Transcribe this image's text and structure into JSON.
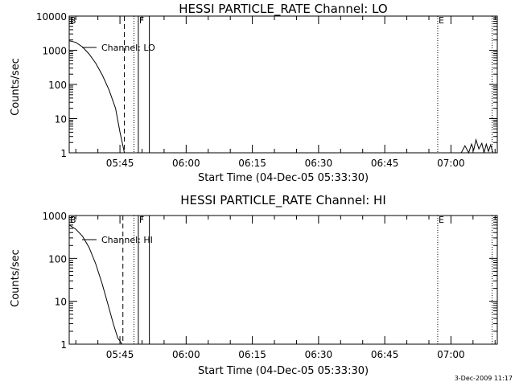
{
  "chart_data": [
    {
      "type": "line",
      "title": "HESSI PARTICLE_RATE Channel: LO",
      "ylabel": "Counts/sec",
      "xlabel": "Start Time (04-Dec-05 05:33:30)",
      "yscale": "log",
      "ylim": [
        1,
        10000
      ],
      "ytick_labels": [
        "1",
        "10",
        "100",
        "1000",
        "10000"
      ],
      "ytick_values": [
        1,
        10,
        100,
        1000,
        10000
      ],
      "xlim": [
        "05:33:30",
        "07:10:30"
      ],
      "xtick_labels": [
        "05:45",
        "06:00",
        "06:15",
        "06:30",
        "06:45",
        "07:00"
      ],
      "legend": "Channel: LO",
      "series": [
        {
          "name": "Channel: LO",
          "x": [
            "05:33:30",
            "05:35:00",
            "05:36:30",
            "05:38:00",
            "05:39:30",
            "05:41:00",
            "05:42:30",
            "05:44:00",
            "05:45:00",
            "05:46:00"
          ],
          "y": [
            1900,
            1700,
            1250,
            780,
            420,
            190,
            70,
            20,
            4,
            1
          ]
        },
        {
          "name": "Channel: LO",
          "x": [
            "07:02:20",
            "07:03:10",
            "07:04:00",
            "07:04:40",
            "07:05:10",
            "07:05:40",
            "07:06:20",
            "07:07:00",
            "07:07:30",
            "07:08:00",
            "07:08:30",
            "07:09:00",
            "07:09:30"
          ],
          "y": [
            1,
            1.6,
            1,
            1.8,
            1.2,
            2.4,
            1.3,
            1.9,
            1,
            1.8,
            1.1,
            1.7,
            1
          ]
        }
      ],
      "markers": [
        {
          "label": "B",
          "time": "05:33:30",
          "style": "solid"
        },
        {
          "label": "",
          "time": "05:46:00",
          "style": "dashed"
        },
        {
          "label": "",
          "time": "05:48:10",
          "style": "dotted"
        },
        {
          "label": "F",
          "time": "05:49:10",
          "style": "solid"
        },
        {
          "label": "",
          "time": "05:51:40",
          "style": "solid"
        },
        {
          "label": "E",
          "time": "06:57:00",
          "style": "dotted"
        },
        {
          "label": "",
          "time": "07:09:20",
          "style": "dotted"
        }
      ]
    },
    {
      "type": "line",
      "title": "HESSI PARTICLE_RATE Channel: HI",
      "ylabel": "Counts/sec",
      "xlabel": "Start Time (04-Dec-05 05:33:30)",
      "yscale": "log",
      "ylim": [
        1,
        1000
      ],
      "ytick_labels": [
        "1",
        "10",
        "100",
        "1000"
      ],
      "ytick_values": [
        1,
        10,
        100,
        1000
      ],
      "xlim": [
        "05:33:30",
        "07:10:30"
      ],
      "xtick_labels": [
        "05:45",
        "06:00",
        "06:15",
        "06:30",
        "06:45",
        "07:00"
      ],
      "legend": "Channel: HI",
      "series": [
        {
          "name": "Channel: HI",
          "x": [
            "05:33:30",
            "05:35:00",
            "05:36:30",
            "05:38:00",
            "05:39:30",
            "05:41:00",
            "05:42:30",
            "05:43:30",
            "05:44:30",
            "05:45:30"
          ],
          "y": [
            600,
            480,
            330,
            180,
            75,
            25,
            7,
            3,
            1.4,
            1
          ]
        }
      ],
      "markers": [
        {
          "label": "B",
          "time": "05:33:30",
          "style": "solid"
        },
        {
          "label": "",
          "time": "05:45:40",
          "style": "dashed"
        },
        {
          "label": "",
          "time": "05:48:10",
          "style": "dotted"
        },
        {
          "label": "F",
          "time": "05:49:10",
          "style": "solid"
        },
        {
          "label": "",
          "time": "05:51:40",
          "style": "solid"
        },
        {
          "label": "E",
          "time": "06:57:00",
          "style": "dotted"
        },
        {
          "label": "",
          "time": "07:09:20",
          "style": "dotted"
        }
      ]
    }
  ],
  "footer": {
    "stamp": "3-Dec-2009 11:17"
  },
  "colors": {
    "background": "#ffffff",
    "foreground": "#000000"
  }
}
